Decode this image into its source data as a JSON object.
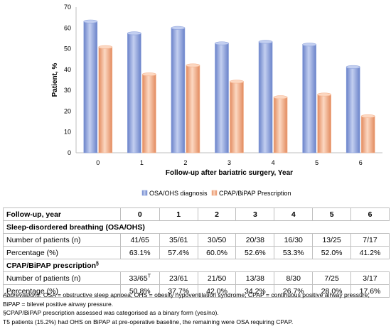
{
  "chart_data": {
    "type": "bar",
    "categories": [
      "0",
      "1",
      "2",
      "3",
      "4",
      "5",
      "6"
    ],
    "series": [
      {
        "name": "OSA/OHS diagnosis",
        "values": [
          63.1,
          57.4,
          60.0,
          52.6,
          53.3,
          52.0,
          41.2
        ],
        "color": "#8ea3dc"
      },
      {
        "name": "CPAP/BiPAP Prescription",
        "values": [
          50.8,
          37.7,
          42.0,
          34.2,
          26.7,
          28.0,
          17.6
        ],
        "color": "#f6b693"
      }
    ],
    "yticks": [
      "0",
      "10",
      "20",
      "30",
      "40",
      "50",
      "60",
      "70"
    ],
    "ylim": [
      0,
      70
    ],
    "ylabel": "Patient, %",
    "xlabel": "Follow-up after bariatric surgery, Year",
    "legend_position": "bottom",
    "grid": false
  },
  "table": {
    "header": [
      "Follow-up, year",
      "0",
      "1",
      "2",
      "3",
      "4",
      "5",
      "6"
    ],
    "section1": "Sleep-disordered breathing (OSA/OHS)",
    "s1_rows": [
      {
        "label": "Number of patients (n)",
        "values": [
          "41/65",
          "35/61",
          "30/50",
          "20/38",
          "16/30",
          "13/25",
          "7/17"
        ]
      },
      {
        "label": "Percentage (%)",
        "values": [
          "63.1%",
          "57.4%",
          "60.0%",
          "52.6%",
          "53.3%",
          "52.0%",
          "41.2%"
        ]
      }
    ],
    "section2": "CPAP/BiPAP prescription",
    "section2_mark": "§",
    "s2_rows": [
      {
        "label": "Number of patients (n)",
        "values": [
          "33/65",
          "23/61",
          "21/50",
          "13/38",
          "8/30",
          "7/25",
          "3/17"
        ],
        "first_mark": "T"
      },
      {
        "label": "Percentage (%)",
        "values": [
          "50.8%",
          "37.7%",
          "42.0%",
          "34.2%",
          "26.7%",
          "28.0%",
          "17.6%"
        ]
      }
    ]
  },
  "notes": {
    "abbrev_label": "Abbreviations:",
    "abbrev_line1": " OSA = obstructive sleep apnoea; OHS = obesity hypoventilation syndrome; CPAP = continuous positive airway pressure;",
    "abbrev_line2": "BiPAP = bilevel positive airway pressure.",
    "note_s": "§CPAP/BiPAP prescription assessed was categorised as a binary form (yes/no).",
    "note_t": "T5 patients (15.2%) had OHS on BiPAP at pre-operative baseline, the remaining were OSA requiring CPAP."
  }
}
